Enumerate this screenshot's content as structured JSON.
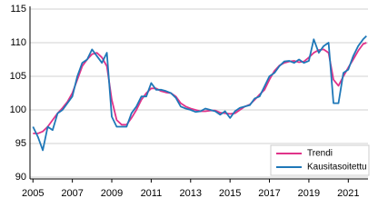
{
  "chart_data": {
    "type": "line",
    "x": [
      2005,
      2005.25,
      2005.5,
      2005.75,
      2006,
      2006.25,
      2006.5,
      2006.75,
      2007,
      2007.25,
      2007.5,
      2007.75,
      2008,
      2008.25,
      2008.5,
      2008.75,
      2009,
      2009.25,
      2009.5,
      2009.75,
      2010,
      2010.25,
      2010.5,
      2010.75,
      2011,
      2011.25,
      2011.5,
      2011.75,
      2012,
      2012.25,
      2012.5,
      2012.75,
      2013,
      2013.25,
      2013.5,
      2013.75,
      2014,
      2014.25,
      2014.5,
      2014.75,
      2015,
      2015.25,
      2015.5,
      2015.75,
      2016,
      2016.25,
      2016.5,
      2016.75,
      2017,
      2017.25,
      2017.5,
      2017.75,
      2018,
      2018.25,
      2018.5,
      2018.75,
      2019,
      2019.25,
      2019.5,
      2019.75,
      2020,
      2020.25,
      2020.5,
      2020.75,
      2021,
      2021.25,
      2021.5,
      2021.75,
      2021.92
    ],
    "series": [
      {
        "name": "Trendi",
        "color": "#e0338a",
        "values": [
          96.5,
          96.5,
          96.8,
          97.5,
          98.5,
          99.5,
          100.3,
          101.2,
          102.5,
          104.5,
          106.5,
          107.5,
          108.3,
          108.5,
          107.8,
          106.5,
          101.5,
          98.5,
          97.8,
          97.8,
          98.8,
          100.0,
          101.5,
          102.5,
          103.2,
          103.2,
          102.8,
          102.6,
          102.5,
          102.0,
          101.0,
          100.5,
          100.2,
          100.0,
          99.8,
          99.8,
          99.9,
          99.9,
          99.6,
          99.5,
          99.4,
          99.5,
          100.0,
          100.5,
          100.8,
          101.5,
          102.3,
          103.0,
          104.5,
          105.8,
          106.6,
          107.0,
          107.2,
          107.3,
          107.1,
          107.2,
          107.8,
          108.5,
          108.9,
          109.0,
          108.5,
          104.5,
          103.6,
          105.0,
          106.3,
          107.5,
          108.8,
          109.8,
          110.0
        ]
      },
      {
        "name": "Kausitasoitettu",
        "color": "#1f78b8",
        "values": [
          97.5,
          96.0,
          94.0,
          97.5,
          97.0,
          99.5,
          100.0,
          101.0,
          102.0,
          105.0,
          107.0,
          107.5,
          109.0,
          108.0,
          107.0,
          108.5,
          99.0,
          97.5,
          97.5,
          97.5,
          99.5,
          100.5,
          102.0,
          102.0,
          104.0,
          103.0,
          103.0,
          102.8,
          102.5,
          101.8,
          100.5,
          100.2,
          100.0,
          99.7,
          99.8,
          100.2,
          100.0,
          99.8,
          99.3,
          99.8,
          98.8,
          99.8,
          100.3,
          100.5,
          100.7,
          101.7,
          102.0,
          103.5,
          105.0,
          105.5,
          106.5,
          107.2,
          107.3,
          107.0,
          107.5,
          107.0,
          107.3,
          110.5,
          108.5,
          109.5,
          110.0,
          101.0,
          101.0,
          105.5,
          106.0,
          108.0,
          109.5,
          110.5,
          111.0
        ]
      }
    ],
    "xlim": [
      2004.85,
      2022.0
    ],
    "xticks": [
      2005,
      2007,
      2009,
      2011,
      2013,
      2015,
      2017,
      2019,
      2021
    ],
    "ylim": [
      90,
      115
    ],
    "yticks": [
      90,
      95,
      100,
      105,
      110,
      115
    ],
    "grid": true,
    "legend": "lower right"
  }
}
